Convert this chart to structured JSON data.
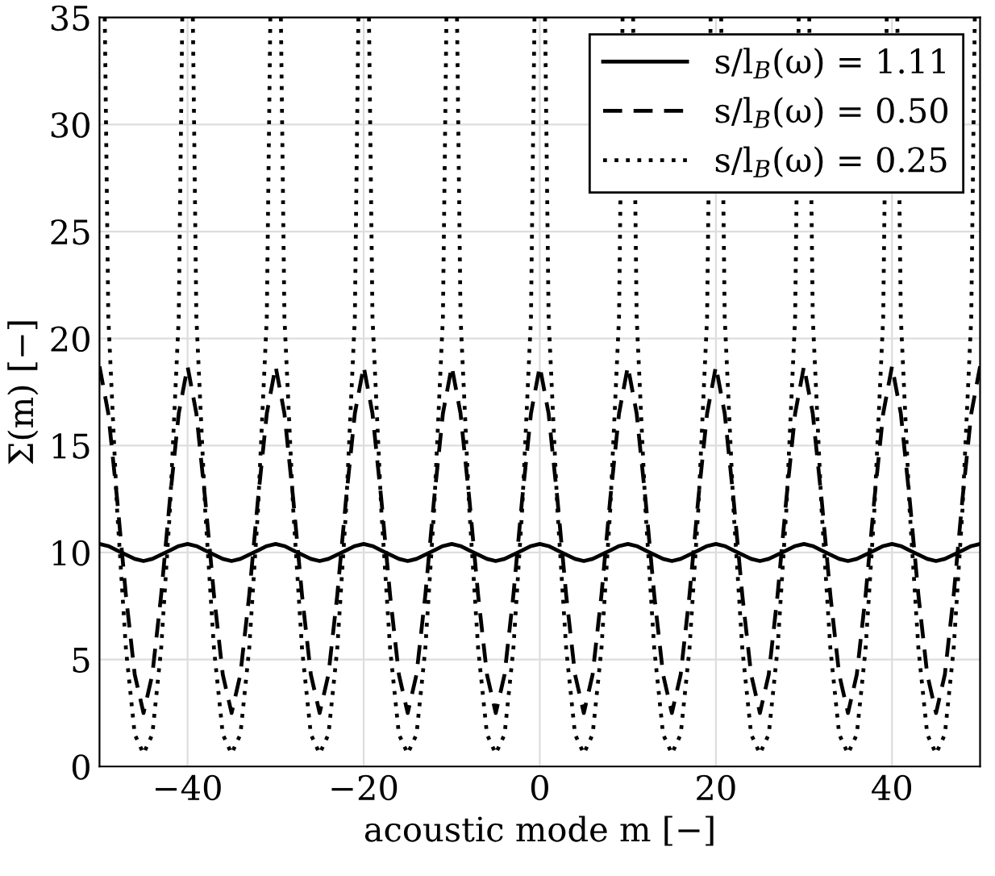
{
  "chart_data": {
    "type": "line",
    "xlabel": "acoustic mode m [−]",
    "ylabel": "Σ(m) [−]",
    "x": [
      -50,
      -49,
      -48,
      -47,
      -46,
      -45,
      -44,
      -43,
      -42,
      -41,
      -40,
      -39,
      -38,
      -37,
      -36,
      -35,
      -34,
      -33,
      -32,
      -31,
      -30,
      -29,
      -28,
      -27,
      -26,
      -25,
      -24,
      -23,
      -22,
      -21,
      -20,
      -19,
      -18,
      -17,
      -16,
      -15,
      -14,
      -13,
      -12,
      -11,
      -10,
      -9,
      -8,
      -7,
      -6,
      -5,
      -4,
      -3,
      -2,
      -1,
      0,
      1,
      2,
      3,
      4,
      5,
      6,
      7,
      8,
      9,
      10,
      11,
      12,
      13,
      14,
      15,
      16,
      17,
      18,
      19,
      20,
      21,
      22,
      23,
      24,
      25,
      26,
      27,
      28,
      29,
      30,
      31,
      32,
      33,
      34,
      35,
      36,
      37,
      38,
      39,
      40,
      41,
      42,
      43,
      44,
      45,
      46,
      47,
      48,
      49,
      50
    ],
    "xlim": [
      -50,
      50
    ],
    "xticks": [
      -40,
      -20,
      0,
      20,
      40
    ],
    "ylim": [
      0,
      35
    ],
    "yticks": [
      0,
      5,
      10,
      15,
      20,
      25,
      30,
      35
    ],
    "grid": true,
    "legend": "top right",
    "marker": "none",
    "series": [
      {
        "name": "s/l$_{B}$(ω) = 1.11",
        "color": "#000000",
        "line_style": "solid",
        "values": [
          10.4,
          10.3,
          10.1,
          9.9,
          9.7,
          9.6,
          9.7,
          9.9,
          10.1,
          10.3,
          10.4,
          10.3,
          10.1,
          9.9,
          9.7,
          9.6,
          9.7,
          9.9,
          10.1,
          10.3,
          10.4,
          10.3,
          10.1,
          9.9,
          9.7,
          9.6,
          9.7,
          9.9,
          10.1,
          10.3,
          10.4,
          10.3,
          10.1,
          9.9,
          9.7,
          9.6,
          9.7,
          9.9,
          10.1,
          10.3,
          10.4,
          10.3,
          10.1,
          9.9,
          9.7,
          9.6,
          9.7,
          9.9,
          10.1,
          10.3,
          10.4,
          10.3,
          10.1,
          9.9,
          9.7,
          9.6,
          9.7,
          9.9,
          10.1,
          10.3,
          10.4,
          10.3,
          10.1,
          9.9,
          9.7,
          9.6,
          9.7,
          9.9,
          10.1,
          10.3,
          10.4,
          10.3,
          10.1,
          9.9,
          9.7,
          9.6,
          9.7,
          9.9,
          10.1,
          10.3,
          10.4,
          10.3,
          10.1,
          9.9,
          9.7,
          9.6,
          9.7,
          9.9,
          10.1,
          10.3,
          10.4,
          10.3,
          10.1,
          9.9,
          9.7,
          9.6,
          9.7,
          9.9,
          10.1,
          10.3,
          10.4
        ]
      },
      {
        "name": "s/l$_{B}$(ω) = 0.50",
        "color": "#000000",
        "line_style": "dashed",
        "values": [
          18.7,
          16.5,
          12.5,
          8,
          4.3,
          2.5,
          4.3,
          8,
          12.5,
          16.5,
          18.7,
          16.5,
          12.5,
          8,
          4.3,
          2.5,
          4.3,
          8,
          12.5,
          16.5,
          18.7,
          16.5,
          12.5,
          8,
          4.3,
          2.5,
          4.3,
          8,
          12.5,
          16.5,
          18.7,
          16.5,
          12.5,
          8,
          4.3,
          2.5,
          4.3,
          8,
          12.5,
          16.5,
          18.7,
          16.5,
          12.5,
          8,
          4.3,
          2.5,
          4.3,
          8,
          12.5,
          16.5,
          18.7,
          16.5,
          12.5,
          8,
          4.3,
          2.5,
          4.3,
          8,
          12.5,
          16.5,
          18.7,
          16.5,
          12.5,
          8,
          4.3,
          2.5,
          4.3,
          8,
          12.5,
          16.5,
          18.7,
          16.5,
          12.5,
          8,
          4.3,
          2.5,
          4.3,
          8,
          12.5,
          16.5,
          18.7,
          16.5,
          12.5,
          8,
          4.3,
          2.5,
          4.3,
          8,
          12.5,
          16.5,
          18.7,
          16.5,
          12.5,
          8,
          4.3,
          2.5,
          4.3,
          8,
          12.5,
          16.5,
          18.7
        ]
      },
      {
        "name": "s/l$_{B}$(ω) = 0.25",
        "color": "#000000",
        "line_style": "dotted",
        "x": [
          -49.4,
          -49,
          -48,
          -47,
          -46,
          -45,
          -44,
          -43,
          -42,
          -41,
          -40.6,
          -40,
          -39.4,
          -39,
          -38,
          -37,
          -36,
          -35,
          -34,
          -33,
          -32,
          -31,
          -30.6,
          -30,
          -29.4,
          -29,
          -28,
          -27,
          -26,
          -25,
          -24,
          -23,
          -22,
          -21,
          -20.6,
          -20,
          -19.4,
          -19,
          -18,
          -17,
          -16,
          -15,
          -14,
          -13,
          -12,
          -11,
          -10.6,
          -10,
          -9.4,
          -9,
          -8,
          -7,
          -6,
          -5,
          -4,
          -3,
          -2,
          -1,
          -0.6,
          0,
          0.6,
          1,
          2,
          3,
          4,
          5,
          6,
          7,
          8,
          9,
          9.4,
          10,
          10.6,
          11,
          12,
          13,
          14,
          15,
          16,
          17,
          18,
          19,
          19.4,
          20,
          20.6,
          21,
          22,
          23,
          24,
          25,
          26,
          27,
          28,
          29,
          29.4,
          30,
          30.6,
          31,
          32,
          33,
          34,
          35,
          36,
          37,
          38,
          39,
          39.4,
          40,
          40.6,
          41,
          42,
          43,
          44,
          45,
          46,
          47,
          48,
          49,
          49.4
        ],
        "values": [
          35,
          21,
          12,
          5.5,
          1.5,
          0.6,
          1.5,
          5.5,
          12,
          21,
          35,
          null,
          35,
          21,
          12,
          5.5,
          1.5,
          0.6,
          1.5,
          5.5,
          12,
          21,
          35,
          null,
          35,
          21,
          12,
          5.5,
          1.5,
          0.6,
          1.5,
          5.5,
          12,
          21,
          35,
          null,
          35,
          21,
          12,
          5.5,
          1.5,
          0.6,
          1.5,
          5.5,
          12,
          21,
          35,
          null,
          35,
          21,
          12,
          5.5,
          1.5,
          0.6,
          1.5,
          5.5,
          12,
          21,
          35,
          null,
          35,
          21,
          12,
          5.5,
          1.5,
          0.6,
          1.5,
          5.5,
          12,
          21,
          35,
          null,
          35,
          21,
          12,
          5.5,
          1.5,
          0.6,
          1.5,
          5.5,
          12,
          21,
          35,
          null,
          35,
          21,
          12,
          5.5,
          1.5,
          0.6,
          1.5,
          5.5,
          12,
          21,
          35,
          null,
          35,
          21,
          12,
          5.5,
          1.5,
          0.6,
          1.5,
          5.5,
          12,
          21,
          35,
          null,
          35,
          21,
          12,
          5.5,
          1.5,
          0.6,
          1.5,
          5.5,
          12,
          21,
          35
        ]
      }
    ]
  }
}
